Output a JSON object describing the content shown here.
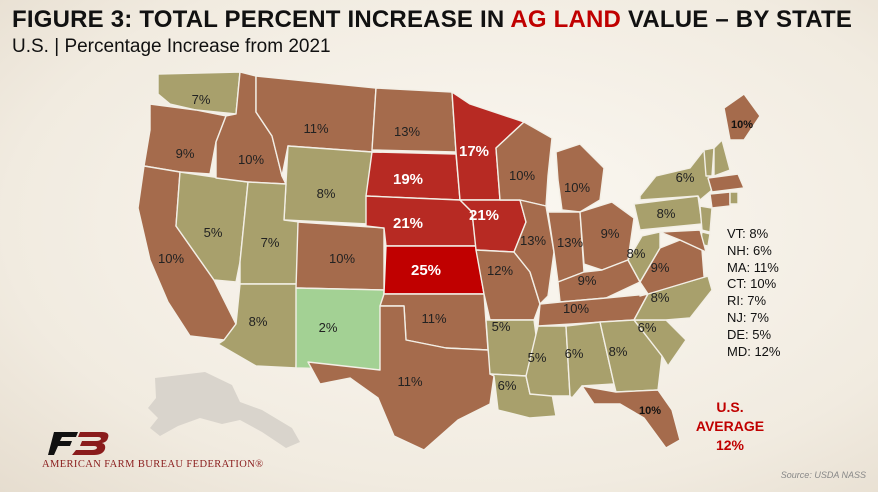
{
  "title": {
    "prefix": "FIGURE 3: TOTAL PERCENT INCREASE IN ",
    "highlight": "AG LAND",
    "suffix": " VALUE – BY STATE"
  },
  "subtitle": "U.S. | Percentage Increase from 2021",
  "colors": {
    "low": "#a3d194",
    "mid": "#a8a06c",
    "brown": "#a56b4c",
    "red": "#b72a23",
    "darkred": "#c00000",
    "accent": "#c00000"
  },
  "states": [
    {
      "id": "WA",
      "label": "7%",
      "value": 7
    },
    {
      "id": "OR",
      "label": "9%",
      "value": 9
    },
    {
      "id": "CA",
      "label": "10%",
      "value": 10
    },
    {
      "id": "NV",
      "label": "5%",
      "value": 5
    },
    {
      "id": "ID",
      "label": "10%",
      "value": 10
    },
    {
      "id": "MT",
      "label": "11%",
      "value": 11
    },
    {
      "id": "WY",
      "label": "8%",
      "value": 8
    },
    {
      "id": "UT",
      "label": "7%",
      "value": 7
    },
    {
      "id": "AZ",
      "label": "8%",
      "value": 8
    },
    {
      "id": "CO",
      "label": "10%",
      "value": 10
    },
    {
      "id": "NM",
      "label": "2%",
      "value": 2
    },
    {
      "id": "ND",
      "label": "13%",
      "value": 13
    },
    {
      "id": "SD",
      "label": "19%",
      "value": 19
    },
    {
      "id": "NE",
      "label": "21%",
      "value": 21
    },
    {
      "id": "KS",
      "label": "25%",
      "value": 25
    },
    {
      "id": "OK",
      "label": "11%",
      "value": 11
    },
    {
      "id": "TX",
      "label": "11%",
      "value": 11
    },
    {
      "id": "MN",
      "label": "17%",
      "value": 17
    },
    {
      "id": "IA",
      "label": "21%",
      "value": 21
    },
    {
      "id": "MO",
      "label": "12%",
      "value": 12
    },
    {
      "id": "AR",
      "label": "5%",
      "value": 5
    },
    {
      "id": "LA",
      "label": "6%",
      "value": 6
    },
    {
      "id": "WI",
      "label": "10%",
      "value": 10
    },
    {
      "id": "IL",
      "label": "13%",
      "value": 13
    },
    {
      "id": "MS",
      "label": "5%",
      "value": 5
    },
    {
      "id": "MI",
      "label": "10%",
      "value": 10
    },
    {
      "id": "IN",
      "label": "13%",
      "value": 13
    },
    {
      "id": "OH",
      "label": "9%",
      "value": 9
    },
    {
      "id": "KY",
      "label": "9%",
      "value": 9
    },
    {
      "id": "TN",
      "label": "10%",
      "value": 10
    },
    {
      "id": "AL",
      "label": "6%",
      "value": 6
    },
    {
      "id": "GA",
      "label": "8%",
      "value": 8
    },
    {
      "id": "FL",
      "label": "10%",
      "value": 10
    },
    {
      "id": "SC",
      "label": "6%",
      "value": 6
    },
    {
      "id": "NC",
      "label": "8%",
      "value": 8
    },
    {
      "id": "VA",
      "label": "9%",
      "value": 9
    },
    {
      "id": "WV",
      "label": "8%",
      "value": 8
    },
    {
      "id": "PA",
      "label": "8%",
      "value": 8
    },
    {
      "id": "NY",
      "label": "6%",
      "value": 6
    },
    {
      "id": "ME",
      "label": "10%",
      "value": 10
    },
    {
      "id": "VT",
      "value": 8
    },
    {
      "id": "NH",
      "value": 6
    },
    {
      "id": "MA",
      "value": 11
    },
    {
      "id": "CT",
      "value": 10
    },
    {
      "id": "RI",
      "value": 7
    },
    {
      "id": "NJ",
      "value": 7
    },
    {
      "id": "DE",
      "value": 5
    },
    {
      "id": "MD",
      "value": 12
    }
  ],
  "legend": [
    "VT: 8%",
    "NH: 6%",
    "MA: 11%",
    "CT: 10%",
    "RI: 7%",
    "NJ: 7%",
    "DE: 5%",
    "MD: 12%"
  ],
  "average": {
    "line1": "U.S.",
    "line2": "AVERAGE",
    "line3": "12%"
  },
  "logo": {
    "text": "AMERICAN FARM BUREAU FEDERATION®"
  },
  "source": "Source: USDA NASS"
}
